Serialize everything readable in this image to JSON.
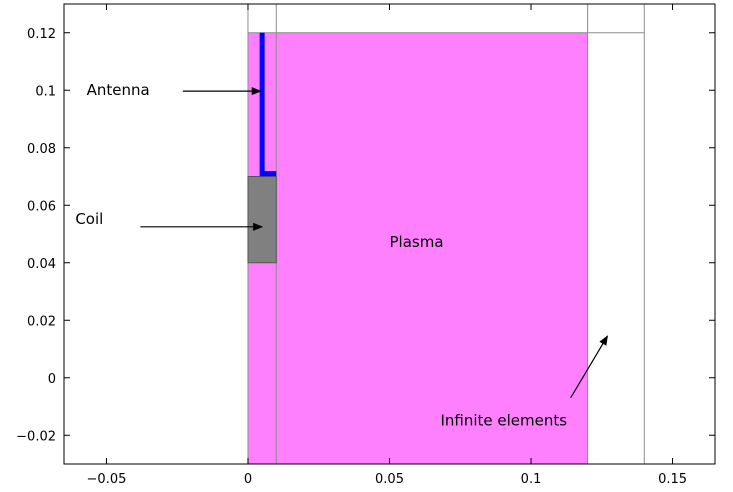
{
  "chart_data": {
    "type": "diagram",
    "xlim": [
      -0.065,
      0.165
    ],
    "ylim": [
      -0.03,
      0.13
    ],
    "x_ticks": [
      {
        "value": -0.05,
        "label": "−0.05"
      },
      {
        "value": 0,
        "label": "0"
      },
      {
        "value": 0.05,
        "label": "0.05"
      },
      {
        "value": 0.1,
        "label": "0.1"
      },
      {
        "value": 0.15,
        "label": "0.15"
      }
    ],
    "y_ticks": [
      {
        "value": 0.12,
        "label": "0.12"
      },
      {
        "value": 0.1,
        "label": "0.1"
      },
      {
        "value": 0.08,
        "label": "0.08"
      },
      {
        "value": 0.06,
        "label": "0.06"
      },
      {
        "value": 0.04,
        "label": "0.04"
      },
      {
        "value": 0.02,
        "label": "0.02"
      },
      {
        "value": 0,
        "label": "0"
      },
      {
        "value": -0.02,
        "label": "−0.02"
      }
    ],
    "domain_lines": {
      "vertical_x": [
        0,
        0.01,
        0.12,
        0.14
      ],
      "vertical_y_range": [
        -0.03,
        0.13
      ],
      "horizontal_y": 0.12,
      "horizontal_x_range": [
        0,
        0.14
      ]
    },
    "regions": [
      {
        "name": "plasma",
        "color": "#ff80ff",
        "x": [
          0,
          0.12
        ],
        "y": [
          -0.03,
          0.12
        ]
      },
      {
        "name": "coil",
        "color": "#808080",
        "x": [
          0,
          0.01
        ],
        "y": [
          0.04,
          0.07
        ]
      }
    ],
    "antenna": {
      "color": "#0000ff",
      "path": [
        [
          0.005,
          0.12
        ],
        [
          0.005,
          0.071
        ],
        [
          0.01,
          0.071
        ]
      ]
    },
    "annotations": [
      {
        "key": "antenna",
        "text": "Antenna",
        "text_at": [
          -0.057,
          0.1
        ],
        "arrow_from": [
          -0.023,
          0.0997
        ],
        "arrow_to": [
          0.0045,
          0.0997
        ]
      },
      {
        "key": "coil",
        "text": "Coil",
        "text_at": [
          -0.061,
          0.055
        ],
        "arrow_from": [
          -0.038,
          0.0525
        ],
        "arrow_to": [
          0.005,
          0.0525
        ]
      },
      {
        "key": "plasma",
        "text": "Plasma",
        "text_at": [
          0.05,
          0.047
        ],
        "arrow_from": null,
        "arrow_to": null
      },
      {
        "key": "infinite",
        "text": "Infinite elements",
        "text_at": [
          0.068,
          -0.015
        ],
        "arrow_from": [
          0.114,
          -0.007
        ],
        "arrow_to": [
          0.127,
          0.0145
        ]
      }
    ]
  }
}
